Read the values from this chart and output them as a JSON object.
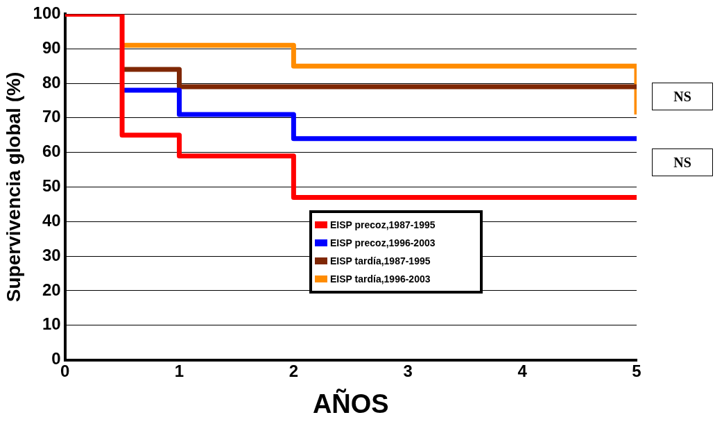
{
  "chart_data": {
    "type": "step",
    "xlabel": "AÑOS",
    "ylabel": "Supervivencia global (%)",
    "xlim": [
      0,
      5
    ],
    "xticks": [
      0,
      1,
      2,
      3,
      4,
      5
    ],
    "ylim": [
      0,
      100
    ],
    "yticks": [
      0,
      10,
      20,
      30,
      40,
      50,
      60,
      70,
      80,
      90,
      100
    ],
    "grid": "y",
    "legend": "bottom",
    "marker": "none",
    "line_style": "solid",
    "series": [
      {
        "name": "EISP precoz,1987-1995",
        "color": "#ff0000",
        "x": [
          0,
          0.5,
          1,
          2,
          5
        ],
        "values": [
          100,
          65,
          59,
          47,
          47
        ]
      },
      {
        "name": "EISP precoz,1996-2003",
        "color": "#0000ff",
        "x": [
          0.5,
          1,
          2,
          5
        ],
        "values": [
          78,
          71,
          64,
          64
        ]
      },
      {
        "name": "EISP tardía,1987-1995",
        "color": "#7f2704",
        "x": [
          0.5,
          1,
          5
        ],
        "values": [
          84,
          79,
          79
        ]
      },
      {
        "name": "EISP tardía,1996-2003",
        "color": "#ff8c00",
        "x": [
          0.5,
          2,
          5,
          5
        ],
        "values": [
          91,
          85,
          85,
          71
        ]
      }
    ],
    "annotations": [
      "NS",
      "NS"
    ]
  }
}
